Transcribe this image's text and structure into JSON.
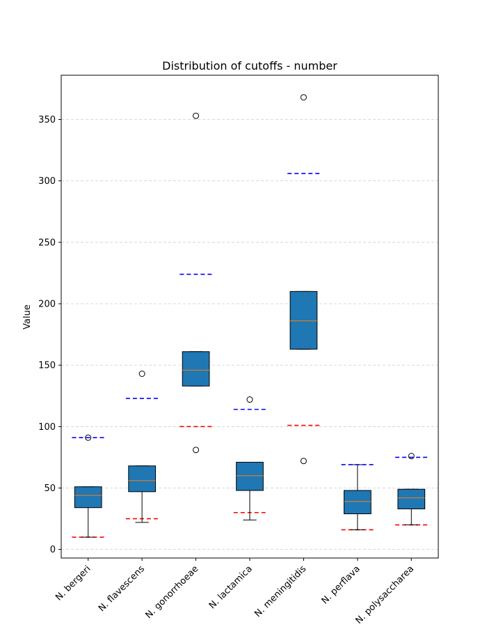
{
  "chart_data": {
    "type": "box",
    "title": "Distribution of cutoffs - number",
    "xlabel": "",
    "ylabel": "Value",
    "ylim": [
      -7,
      386
    ],
    "yticks": [
      0,
      50,
      100,
      150,
      200,
      250,
      300,
      350
    ],
    "grid": "horizontal dashed",
    "categories": [
      "N. bergeri",
      "N. flavescens",
      "N. gonorrhoeae",
      "N. lactamica",
      "N. meningitidis",
      "N. perflava",
      "N. polysaccharea"
    ],
    "boxes": [
      {
        "whisker_low": 10,
        "q1": 34,
        "median": 44,
        "q3": 51,
        "whisker_high": 51,
        "outliers": [
          91
        ],
        "red_line": 10,
        "blue_line": 91
      },
      {
        "whisker_low": 22,
        "q1": 47,
        "median": 56,
        "q3": 68,
        "whisker_high": 68,
        "outliers": [
          143
        ],
        "red_line": 25,
        "blue_line": 123
      },
      {
        "whisker_low": 133,
        "q1": 133,
        "median": 146,
        "q3": 161,
        "whisker_high": 161,
        "outliers": [
          81,
          353
        ],
        "red_line": 100,
        "blue_line": 224
      },
      {
        "whisker_low": 24,
        "q1": 48,
        "median": 60,
        "q3": 71,
        "whisker_high": 71,
        "outliers": [
          122
        ],
        "red_line": 30,
        "blue_line": 114
      },
      {
        "whisker_low": 163,
        "q1": 163,
        "median": 186,
        "q3": 210,
        "whisker_high": 210,
        "outliers": [
          72,
          368
        ],
        "red_line": 101,
        "blue_line": 306
      },
      {
        "whisker_low": 16,
        "q1": 29,
        "median": 39,
        "q3": 48,
        "whisker_high": 69,
        "outliers": [],
        "red_line": 16,
        "blue_line": 69
      },
      {
        "whisker_low": 20,
        "q1": 33,
        "median": 42,
        "q3": 49,
        "whisker_high": 49,
        "outliers": [
          76
        ],
        "red_line": 20,
        "blue_line": 75
      }
    ],
    "colors": {
      "box_fill": "#1f77b4",
      "median": "#ff7f0e",
      "red_line": "#ff0000",
      "blue_line": "#0000ff",
      "grid": "#cccccc"
    }
  }
}
